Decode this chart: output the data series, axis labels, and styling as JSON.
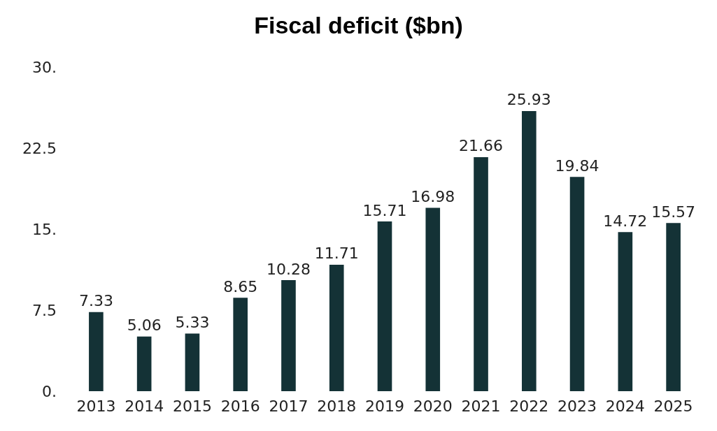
{
  "chart_data": {
    "type": "bar",
    "title": "Fiscal deficit ($bn)",
    "categories": [
      "2013",
      "2014",
      "2015",
      "2016",
      "2017",
      "2018",
      "2019",
      "2020",
      "2021",
      "2022",
      "2023",
      "2024",
      "2025"
    ],
    "values": [
      7.33,
      5.06,
      5.33,
      8.65,
      10.28,
      11.71,
      15.71,
      16.98,
      21.66,
      25.93,
      19.84,
      14.72,
      15.57
    ],
    "color": "#143236",
    "ylim": [
      0,
      30
    ],
    "yticks": [
      {
        "value": 0,
        "label": "0."
      },
      7.5,
      {
        "value": 15,
        "label": "15."
      },
      22.5,
      {
        "value": 30,
        "label": "30."
      }
    ],
    "grid": false,
    "data_labels": true
  }
}
